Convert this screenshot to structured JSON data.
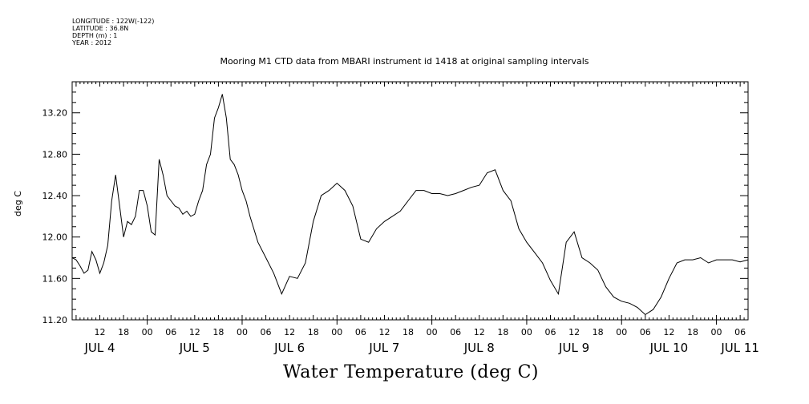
{
  "header": {
    "longitude": "LONGITUDE : 122W(-122)",
    "latitude": "LATITUDE : 36.8N",
    "depth": "DEPTH (m) : 1",
    "year": "YEAR : 2012"
  },
  "chart_data": {
    "type": "line",
    "title": "Mooring M1 CTD data from MBARI instrument id 1418 at original sampling intervals",
    "xlabel": "Water Temperature (deg C)",
    "ylabel": "deg C",
    "ylim": [
      11.2,
      13.5
    ],
    "xlim_hours": [
      5,
      176
    ],
    "yticks": [
      "11.20",
      "11.60",
      "12.00",
      "12.40",
      "12.80",
      "13.20"
    ],
    "hour_ticks": [
      "12",
      "18",
      "00",
      "06",
      "12",
      "18",
      "00",
      "06",
      "12",
      "18",
      "00",
      "06",
      "12",
      "18",
      "00",
      "06",
      "12",
      "18",
      "00",
      "06",
      "12",
      "18",
      "00",
      "06",
      "12",
      "18",
      "00",
      "06"
    ],
    "day_labels": [
      "JUL  4",
      "JUL  5",
      "JUL  6",
      "JUL  7",
      "JUL  8",
      "JUL  9",
      "JUL 10",
      "JUL 11"
    ],
    "series": [
      {
        "x": [
          5,
          6,
          7,
          8,
          9,
          10,
          11,
          12,
          13,
          14,
          15,
          16,
          17,
          18,
          19,
          20,
          21,
          22,
          23,
          24,
          25,
          26,
          27,
          28,
          29,
          30,
          31,
          32,
          33,
          34,
          35,
          36,
          37,
          38,
          39,
          40,
          41,
          42,
          43,
          44,
          45,
          46,
          47,
          48,
          49,
          50,
          52,
          54,
          56,
          58,
          60,
          62,
          64,
          66,
          68,
          70,
          72,
          74,
          76,
          78,
          80,
          82,
          84,
          86,
          88,
          90,
          92,
          94,
          96,
          98,
          100,
          102,
          104,
          106,
          108,
          110,
          112,
          114,
          116,
          118,
          120,
          122,
          124,
          126,
          128,
          130,
          132,
          134,
          136,
          138,
          140,
          142,
          144,
          146,
          148,
          150,
          152,
          154,
          156,
          158,
          160,
          162,
          164,
          166,
          168,
          170,
          172,
          174,
          176
        ],
        "y": [
          11.8,
          11.78,
          11.72,
          11.65,
          11.68,
          11.86,
          11.78,
          11.65,
          11.75,
          11.92,
          12.35,
          12.6,
          12.3,
          12.0,
          12.15,
          12.12,
          12.2,
          12.45,
          12.45,
          12.3,
          12.05,
          12.02,
          12.75,
          12.6,
          12.4,
          12.35,
          12.3,
          12.28,
          12.22,
          12.25,
          12.2,
          12.22,
          12.35,
          12.45,
          12.7,
          12.8,
          13.15,
          13.25,
          13.38,
          13.15,
          12.75,
          12.7,
          12.6,
          12.45,
          12.35,
          12.2,
          11.95,
          11.8,
          11.65,
          11.45,
          11.62,
          11.6,
          11.75,
          12.15,
          12.4,
          12.45,
          12.52,
          12.45,
          12.3,
          11.98,
          11.95,
          12.08,
          12.15,
          12.2,
          12.25,
          12.35,
          12.45,
          12.45,
          12.42,
          12.42,
          12.4,
          12.42,
          12.45,
          12.48,
          12.5,
          12.62,
          12.65,
          12.45,
          12.35,
          12.08,
          11.95,
          11.85,
          11.75,
          11.58,
          11.45,
          11.95,
          12.05,
          11.8,
          11.75,
          11.68,
          11.52,
          11.42,
          11.38,
          11.36,
          11.32,
          11.25,
          11.3,
          11.42,
          11.6,
          11.75,
          11.78,
          11.78,
          11.8,
          11.75,
          11.78,
          11.78,
          11.78,
          11.76,
          11.78
        ]
      }
    ]
  }
}
